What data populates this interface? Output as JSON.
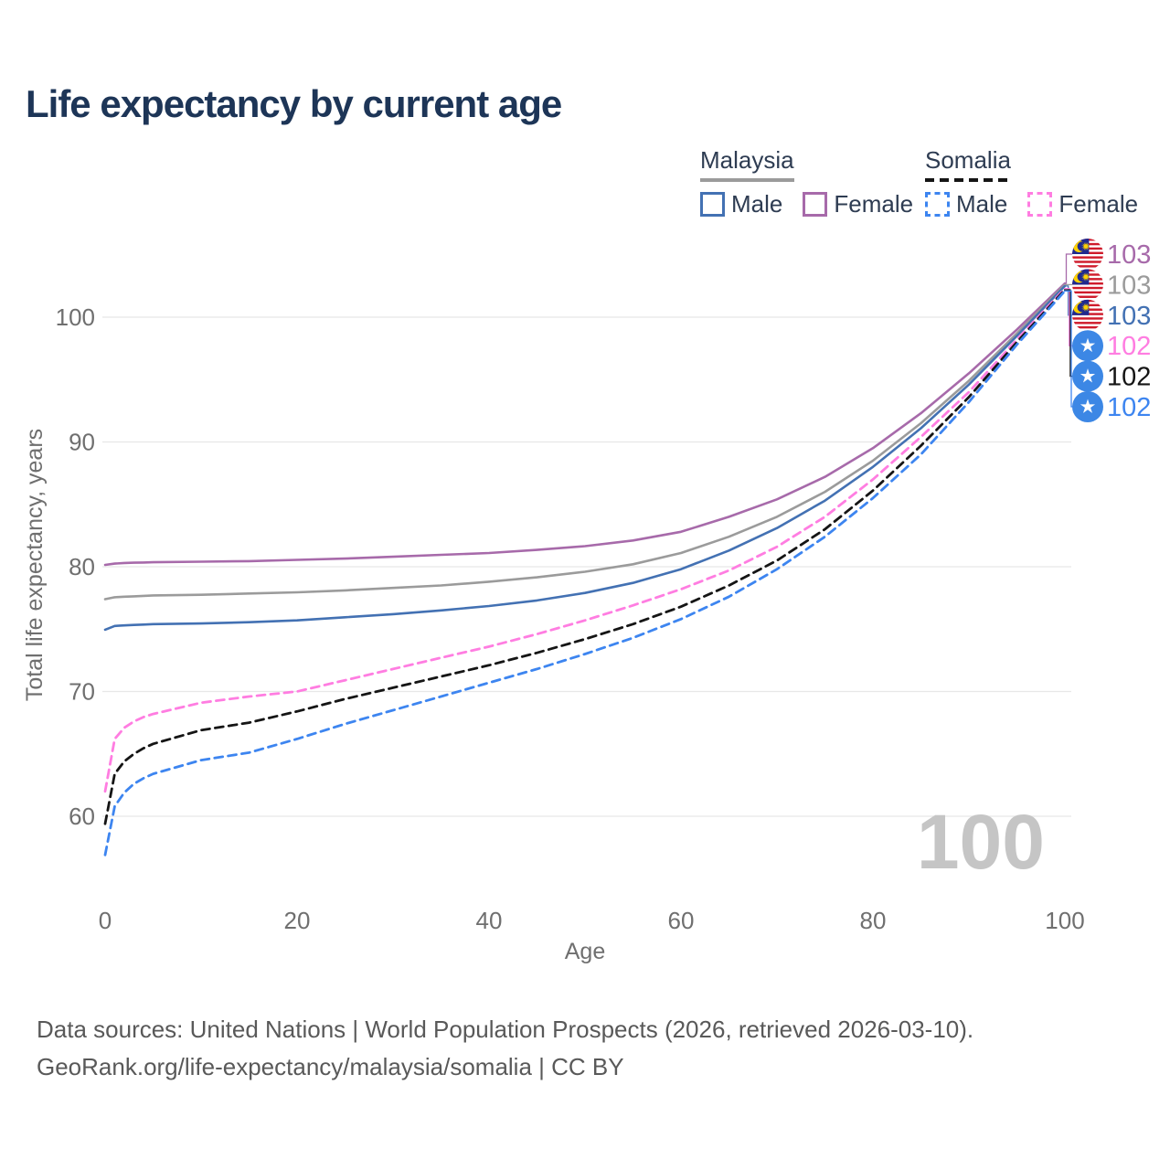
{
  "title": "Life expectancy by current age",
  "legend": {
    "groups": [
      {
        "label": "Malaysia",
        "line_style": "solid",
        "line_color": "#9b9b9b",
        "items": [
          {
            "label": "Male",
            "color": "#4371b3"
          },
          {
            "label": "Female",
            "color": "#a76aaa"
          }
        ]
      },
      {
        "label": "Somalia",
        "line_style": "dashed",
        "line_color": "#151515",
        "items": [
          {
            "label": "Male",
            "color": "#3d85f0"
          },
          {
            "label": "Female",
            "color": "#ff7de1"
          }
        ]
      }
    ]
  },
  "watermark": "100",
  "footer": {
    "line1": "Data sources: United Nations | World Population Prospects (2026, retrieved 2026-03-10).",
    "line2": "GeoRank.org/life-expectancy/malaysia/somalia | CC BY"
  },
  "colors": {
    "title": "#1d3557",
    "grid": "#e7e7e7",
    "tick_text": "#6f6f6f",
    "watermark": "#c5c5c5",
    "malaysia_female": "#a76aaa",
    "malaysia_total": "#9b9b9b",
    "malaysia_male": "#4371b3",
    "somalia_female": "#ff7de1",
    "somalia_total": "#151515",
    "somalia_male": "#3d85f0"
  },
  "chart_data": {
    "type": "line",
    "title": "Life expectancy by current age",
    "xlabel": "Age",
    "ylabel": "Total life expectancy, years",
    "xlim": [
      0,
      100
    ],
    "ylim": [
      56,
      104
    ],
    "x_ticks": [
      0,
      20,
      40,
      60,
      80,
      100
    ],
    "y_ticks": [
      60,
      70,
      80,
      90,
      100
    ],
    "grid": "horizontal",
    "legend_position": "top-right",
    "x": [
      0,
      1,
      2,
      3,
      4,
      5,
      10,
      15,
      20,
      25,
      30,
      35,
      40,
      45,
      50,
      55,
      60,
      65,
      70,
      75,
      80,
      85,
      90,
      95,
      100
    ],
    "series": [
      {
        "name": "Malaysia Female",
        "country": "Malaysia",
        "sex": "Female",
        "color": "#a76aaa",
        "dashed": false,
        "end_label": "103",
        "values": [
          80.15,
          80.25,
          80.3,
          80.32,
          80.34,
          80.36,
          80.4,
          80.45,
          80.55,
          80.65,
          80.8,
          80.95,
          81.1,
          81.35,
          81.65,
          82.1,
          82.8,
          84.0,
          85.4,
          87.2,
          89.5,
          92.3,
          95.5,
          99.0,
          102.7
        ]
      },
      {
        "name": "Malaysia Total",
        "country": "Malaysia",
        "sex": "Both",
        "color": "#9b9b9b",
        "dashed": false,
        "end_label": "103",
        "values": [
          77.4,
          77.55,
          77.6,
          77.63,
          77.66,
          77.7,
          77.75,
          77.85,
          77.95,
          78.1,
          78.3,
          78.5,
          78.8,
          79.15,
          79.6,
          80.2,
          81.1,
          82.4,
          84.0,
          86.0,
          88.5,
          91.5,
          94.9,
          98.7,
          102.6
        ]
      },
      {
        "name": "Malaysia Male",
        "country": "Malaysia",
        "sex": "Male",
        "color": "#4371b3",
        "dashed": false,
        "end_label": "103",
        "values": [
          74.95,
          75.25,
          75.3,
          75.33,
          75.36,
          75.4,
          75.45,
          75.55,
          75.7,
          75.95,
          76.2,
          76.5,
          76.85,
          77.3,
          77.9,
          78.7,
          79.8,
          81.3,
          83.1,
          85.3,
          88.0,
          91.1,
          94.6,
          98.5,
          102.5
        ]
      },
      {
        "name": "Somalia Female",
        "country": "Somalia",
        "sex": "Female",
        "color": "#ff7de1",
        "dashed": true,
        "end_label": "102",
        "values": [
          62.0,
          66.2,
          67.1,
          67.6,
          67.95,
          68.2,
          69.1,
          69.6,
          70.0,
          70.9,
          71.8,
          72.7,
          73.6,
          74.6,
          75.7,
          76.9,
          78.2,
          79.7,
          81.6,
          84.0,
          87.0,
          90.4,
          94.0,
          98.2,
          102.3
        ]
      },
      {
        "name": "Somalia Total",
        "country": "Somalia",
        "sex": "Both",
        "color": "#151515",
        "dashed": true,
        "end_label": "102",
        "values": [
          59.4,
          63.4,
          64.4,
          65.0,
          65.45,
          65.8,
          66.9,
          67.5,
          68.4,
          69.4,
          70.3,
          71.2,
          72.1,
          73.1,
          74.2,
          75.4,
          76.8,
          78.5,
          80.5,
          83.0,
          86.1,
          89.7,
          93.6,
          98.0,
          102.2
        ]
      },
      {
        "name": "Somalia Male",
        "country": "Somalia",
        "sex": "Male",
        "color": "#3d85f0",
        "dashed": true,
        "end_label": "102",
        "values": [
          56.9,
          60.8,
          61.9,
          62.6,
          63.05,
          63.4,
          64.5,
          65.1,
          66.2,
          67.4,
          68.5,
          69.6,
          70.7,
          71.8,
          73.0,
          74.3,
          75.8,
          77.6,
          79.8,
          82.4,
          85.5,
          89.0,
          93.2,
          97.8,
          102.1
        ]
      }
    ]
  }
}
